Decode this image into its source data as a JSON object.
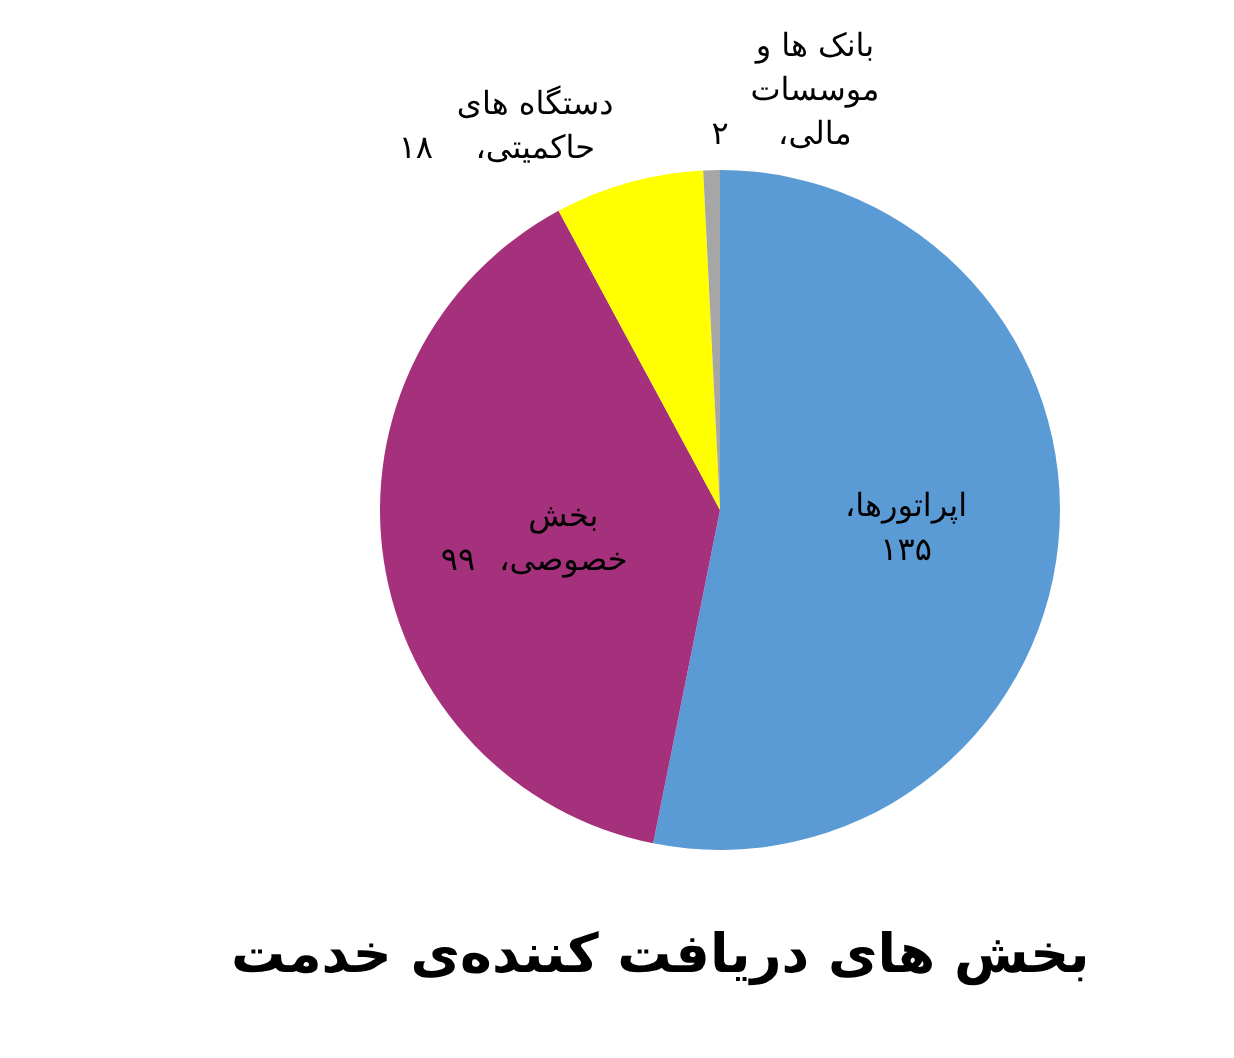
{
  "chart_data": {
    "type": "pie",
    "title": "بخش های دریافت کننده‌ی خدمت",
    "categories": [
      "اپراتورها،",
      "بخش خصوصی،",
      "دستگاه های حاکمیتی،",
      "بانک ها و موسسات مالی،"
    ],
    "values": [
      135,
      99,
      18,
      2
    ],
    "value_labels": [
      "۱۳۵",
      "۹۹",
      "۱۸",
      "۲"
    ],
    "colors": [
      "#5b9bd5",
      "#a5307c",
      "#ffff00",
      "#a6a6a6"
    ]
  }
}
